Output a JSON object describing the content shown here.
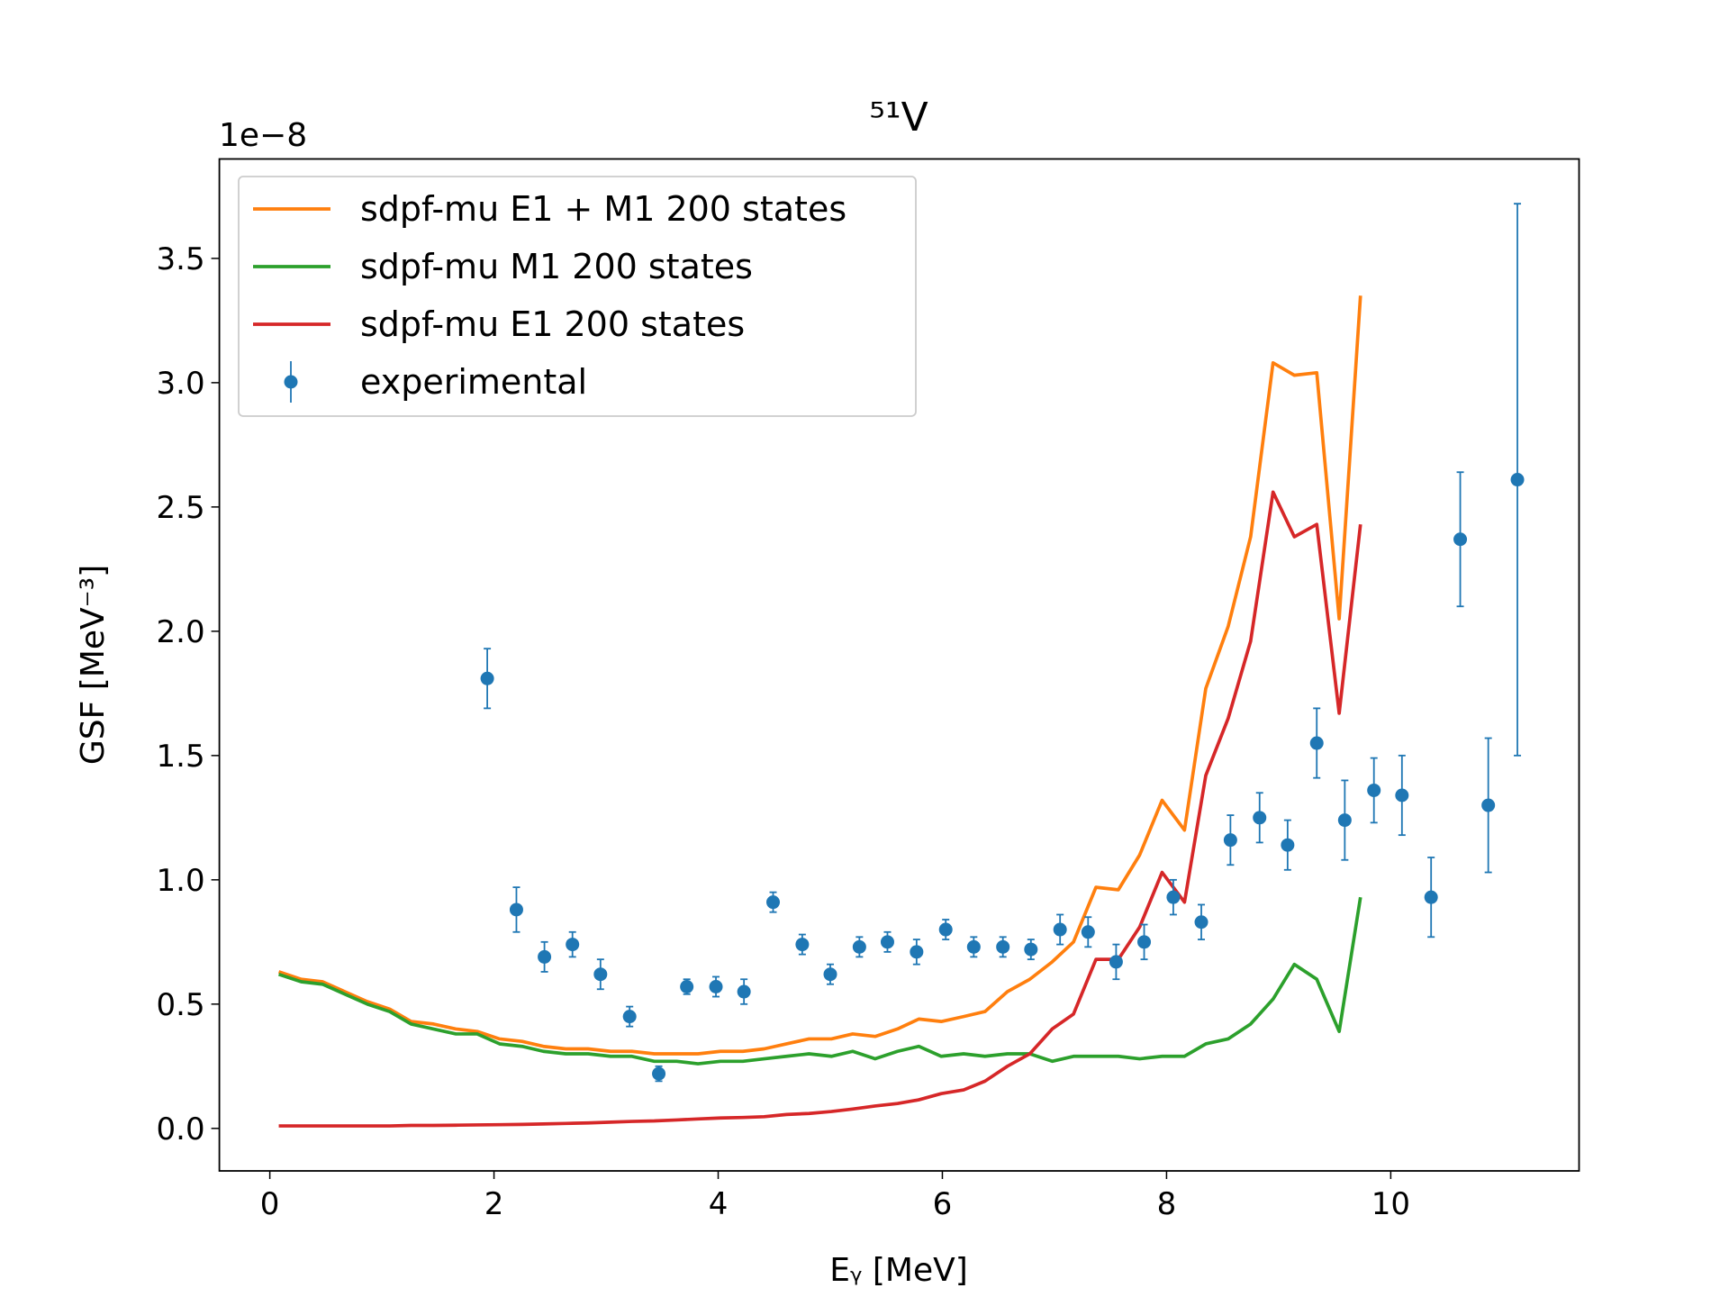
{
  "chart_data": {
    "type": "line",
    "title": "⁵¹V",
    "xlabel": "Eᵧ [MeV]",
    "ylabel": "GSF [MeV⁻³]",
    "y_offset_text": "1e−8",
    "xlim": [
      -0.45,
      11.68
    ],
    "ylim": [
      -0.171,
      3.9
    ],
    "xticks": [
      0,
      2,
      4,
      6,
      8,
      10
    ],
    "yticks": [
      {
        "value": 0,
        "label": "0.0"
      },
      {
        "value": 0.5,
        "label": "0.5"
      },
      {
        "value": 1,
        "label": "1.0"
      },
      {
        "value": 1.5,
        "label": "1.5"
      },
      {
        "value": 2,
        "label": "2.0"
      },
      {
        "value": 2.5,
        "label": "2.5"
      },
      {
        "value": 3,
        "label": "3.0"
      },
      {
        "value": 3.5,
        "label": "3.5"
      }
    ],
    "legend": "upper left",
    "series": [
      {
        "name": "sdpf-mu E1 + M1 200 states",
        "color": "#ff7f0e",
        "kind": "line",
        "x": [
          0.08,
          0.28,
          0.47,
          0.67,
          0.87,
          1.07,
          1.26,
          1.46,
          1.66,
          1.85,
          2.05,
          2.25,
          2.44,
          2.64,
          2.84,
          3.04,
          3.23,
          3.43,
          3.63,
          3.82,
          4.02,
          4.22,
          4.41,
          4.61,
          4.81,
          5.01,
          5.2,
          5.4,
          5.6,
          5.79,
          5.99,
          6.19,
          6.38,
          6.58,
          6.78,
          6.98,
          7.17,
          7.37,
          7.57,
          7.76,
          7.96,
          8.16,
          8.35,
          8.55,
          8.75,
          8.95,
          9.14,
          9.34,
          9.54,
          9.73
        ],
        "values": [
          0.63,
          0.6,
          0.59,
          0.55,
          0.51,
          0.48,
          0.43,
          0.42,
          0.4,
          0.39,
          0.36,
          0.35,
          0.33,
          0.32,
          0.32,
          0.31,
          0.31,
          0.3,
          0.3,
          0.3,
          0.31,
          0.31,
          0.32,
          0.34,
          0.36,
          0.36,
          0.38,
          0.37,
          0.4,
          0.44,
          0.43,
          0.45,
          0.47,
          0.55,
          0.6,
          0.67,
          0.75,
          0.97,
          0.96,
          1.1,
          1.32,
          1.2,
          1.77,
          2.02,
          2.38,
          3.08,
          3.03,
          3.04,
          2.05,
          3.35
        ]
      },
      {
        "name": "sdpf-mu M1 200 states",
        "color": "#2ca02c",
        "kind": "line",
        "x": [
          0.08,
          0.28,
          0.47,
          0.67,
          0.87,
          1.07,
          1.26,
          1.46,
          1.66,
          1.85,
          2.05,
          2.25,
          2.44,
          2.64,
          2.84,
          3.04,
          3.23,
          3.43,
          3.63,
          3.82,
          4.02,
          4.22,
          4.41,
          4.61,
          4.81,
          5.01,
          5.2,
          5.4,
          5.6,
          5.79,
          5.99,
          6.19,
          6.38,
          6.58,
          6.78,
          6.98,
          7.17,
          7.37,
          7.57,
          7.76,
          7.96,
          8.16,
          8.35,
          8.55,
          8.75,
          8.95,
          9.14,
          9.34,
          9.54,
          9.73
        ],
        "values": [
          0.62,
          0.59,
          0.58,
          0.54,
          0.5,
          0.47,
          0.42,
          0.4,
          0.38,
          0.38,
          0.34,
          0.33,
          0.31,
          0.3,
          0.3,
          0.29,
          0.29,
          0.27,
          0.27,
          0.26,
          0.27,
          0.27,
          0.28,
          0.29,
          0.3,
          0.29,
          0.31,
          0.28,
          0.31,
          0.33,
          0.29,
          0.3,
          0.29,
          0.3,
          0.3,
          0.27,
          0.29,
          0.29,
          0.29,
          0.28,
          0.29,
          0.29,
          0.34,
          0.36,
          0.42,
          0.52,
          0.66,
          0.6,
          0.39,
          0.93
        ]
      },
      {
        "name": "sdpf-mu E1 200 states",
        "color": "#d62728",
        "kind": "line",
        "x": [
          0.08,
          0.28,
          0.47,
          0.67,
          0.87,
          1.07,
          1.26,
          1.46,
          1.66,
          1.85,
          2.05,
          2.25,
          2.44,
          2.64,
          2.84,
          3.04,
          3.23,
          3.43,
          3.63,
          3.82,
          4.02,
          4.22,
          4.41,
          4.61,
          4.81,
          5.01,
          5.2,
          5.4,
          5.6,
          5.79,
          5.99,
          6.19,
          6.38,
          6.58,
          6.78,
          6.98,
          7.17,
          7.37,
          7.57,
          7.76,
          7.96,
          8.16,
          8.35,
          8.55,
          8.75,
          8.95,
          9.14,
          9.34,
          9.54,
          9.73
        ],
        "values": [
          0.01,
          0.01,
          0.01,
          0.01,
          0.01,
          0.01,
          0.012,
          0.012,
          0.013,
          0.014,
          0.015,
          0.016,
          0.018,
          0.02,
          0.022,
          0.025,
          0.028,
          0.03,
          0.034,
          0.038,
          0.042,
          0.044,
          0.047,
          0.056,
          0.06,
          0.068,
          0.078,
          0.09,
          0.1,
          0.115,
          0.14,
          0.155,
          0.19,
          0.25,
          0.3,
          0.4,
          0.46,
          0.68,
          0.68,
          0.81,
          1.03,
          0.91,
          1.42,
          1.65,
          1.96,
          2.56,
          2.38,
          2.43,
          1.67,
          2.43
        ]
      },
      {
        "name": "experimental",
        "color": "#1f77b4",
        "kind": "errorbar",
        "x": [
          1.94,
          2.2,
          2.45,
          2.7,
          2.95,
          3.21,
          3.47,
          3.72,
          3.98,
          4.23,
          4.49,
          4.75,
          5.0,
          5.26,
          5.51,
          5.77,
          6.03,
          6.28,
          6.54,
          6.79,
          7.05,
          7.3,
          7.55,
          7.8,
          8.06,
          8.31,
          8.57,
          8.83,
          9.08,
          9.34,
          9.59,
          9.85,
          10.1,
          10.36,
          10.62,
          10.87,
          11.13
        ],
        "values": [
          1.81,
          0.88,
          0.69,
          0.74,
          0.62,
          0.45,
          0.22,
          0.57,
          0.57,
          0.55,
          0.91,
          0.74,
          0.62,
          0.73,
          0.75,
          0.71,
          0.8,
          0.73,
          0.73,
          0.72,
          0.8,
          0.79,
          0.67,
          0.75,
          0.93,
          0.83,
          1.16,
          1.25,
          1.14,
          1.55,
          1.24,
          1.36,
          1.34,
          0.93,
          2.37,
          1.3,
          2.61
        ],
        "errors": [
          0.12,
          0.09,
          0.06,
          0.05,
          0.06,
          0.04,
          0.03,
          0.03,
          0.04,
          0.05,
          0.04,
          0.04,
          0.04,
          0.04,
          0.04,
          0.05,
          0.04,
          0.04,
          0.04,
          0.04,
          0.06,
          0.06,
          0.07,
          0.07,
          0.07,
          0.07,
          0.1,
          0.1,
          0.1,
          0.14,
          0.16,
          0.13,
          0.16,
          0.16,
          0.27,
          0.27,
          1.11
        ]
      }
    ]
  }
}
